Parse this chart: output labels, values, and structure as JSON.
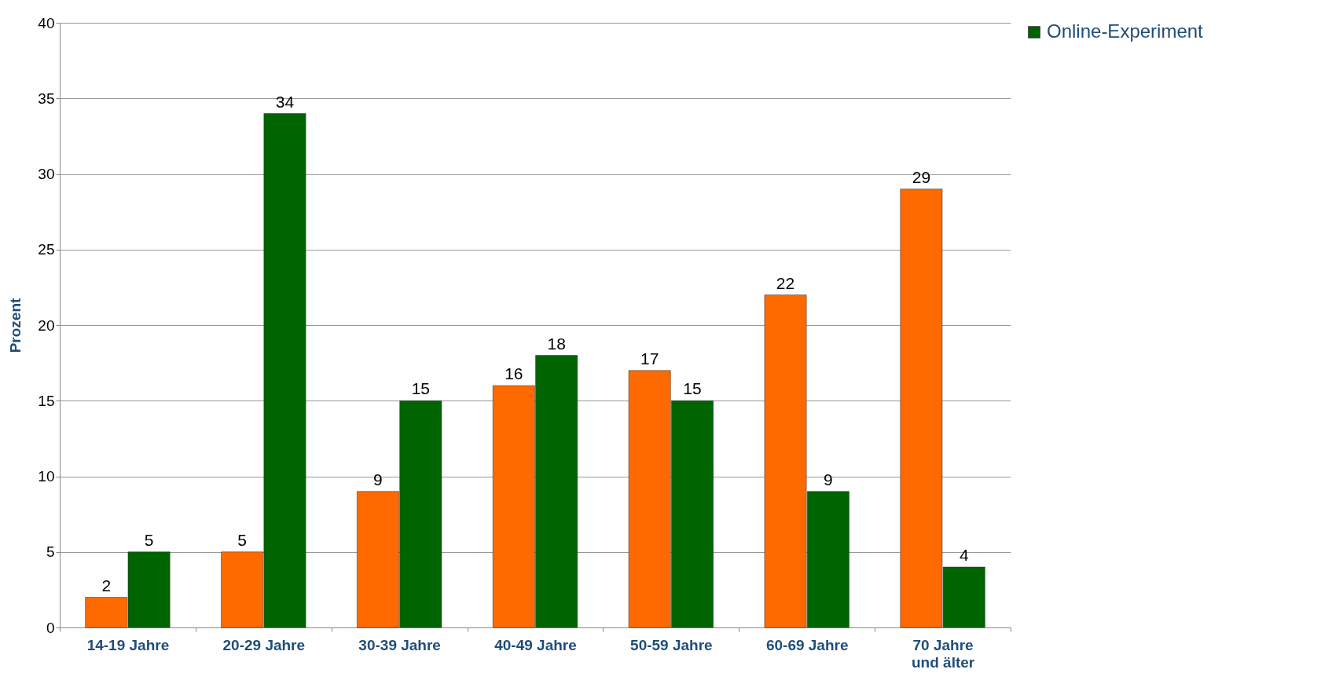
{
  "chart_data": {
    "type": "bar",
    "ylabel": "Prozent",
    "categories": [
      "14-19 Jahre",
      "20-29 Jahre",
      "30-39 Jahre",
      "40-49 Jahre",
      "50-59 Jahre",
      "60-69 Jahre",
      "70 Jahre und älter"
    ],
    "series": [
      {
        "color": "#ff6a00",
        "values": [
          2,
          5,
          9,
          16,
          17,
          22,
          29
        ]
      },
      {
        "name": "Online-Experiment",
        "color": "#006400",
        "values": [
          5,
          34,
          15,
          18,
          15,
          9,
          4
        ]
      }
    ],
    "ylim": [
      0,
      40
    ],
    "yticks": [
      0,
      5,
      10,
      15,
      20,
      25,
      30,
      35,
      40
    ],
    "grid": "y",
    "legend": "right",
    "data_labels": true
  }
}
